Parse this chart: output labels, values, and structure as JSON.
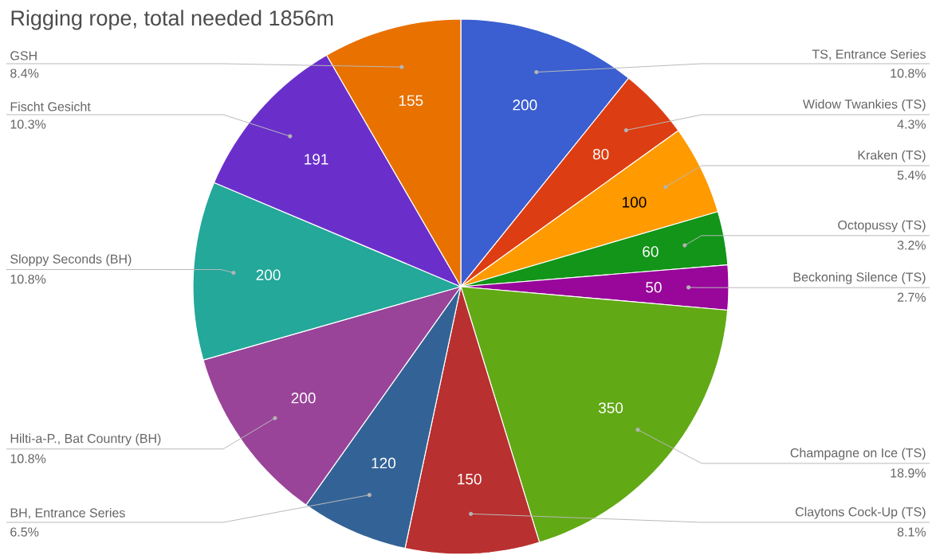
{
  "chart_data": {
    "type": "pie",
    "title": "Rigging rope, total needed 1856m",
    "categories": [
      "TS, Entrance Series",
      "Widow Twankies (TS)",
      "Kraken (TS)",
      "Octopussy (TS)",
      "Beckoning Silence (TS)",
      "Champagne on Ice (TS)",
      "Claytons Cock-Up (TS)",
      "BH, Entrance Series",
      "Hilti-a-P., Bat Country (BH)",
      "Sloppy Seconds (BH)",
      "Fischt Gesicht",
      "GSH"
    ],
    "values": [
      200,
      80,
      100,
      60,
      50,
      350,
      150,
      120,
      200,
      200,
      191,
      155
    ],
    "colors": [
      "#3b5fd0",
      "#dd3d12",
      "#ff9a00",
      "#129518",
      "#98069a",
      "#62a916",
      "#b8302f",
      "#336396",
      "#994499",
      "#23a89a",
      "#6a2fcb",
      "#e87100"
    ],
    "data_labels": true,
    "annotations": [
      "10.8%",
      "4.3%",
      "5.4%",
      "3.2%",
      "2.7%",
      "18.9%",
      "8.1%",
      "6.5%",
      "10.8%",
      "10.8%",
      "10.3%",
      "8.4%"
    ]
  }
}
